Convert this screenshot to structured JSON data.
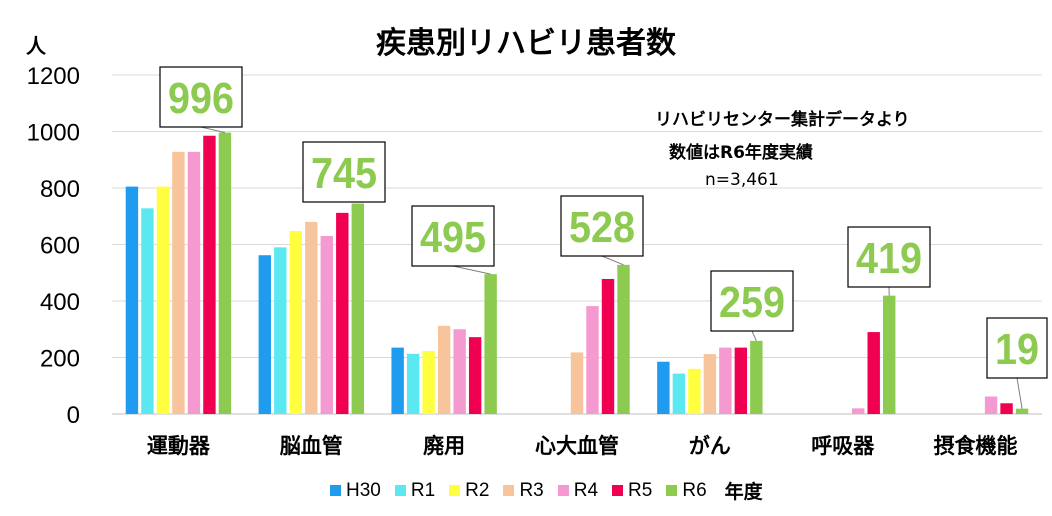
{
  "chart_data": {
    "type": "bar",
    "title": "疾患別リハビリ患者数",
    "ylabel": "人",
    "ylim": [
      0,
      1200
    ],
    "yticks": [
      0,
      200,
      400,
      600,
      800,
      1000,
      1200
    ],
    "grid": true,
    "legend_position": "bottom",
    "legend_suffix": "年度",
    "categories": [
      "運動器",
      "脳血管",
      "廃用",
      "心大血管",
      "がん",
      "呼吸器",
      "摂食機能"
    ],
    "series": [
      {
        "name": "H30",
        "color": "#1f9bf0",
        "values": [
          805,
          562,
          235,
          null,
          185,
          null,
          null
        ]
      },
      {
        "name": "R1",
        "color": "#5ce8f0",
        "values": [
          728,
          590,
          213,
          null,
          143,
          null,
          null
        ]
      },
      {
        "name": "R2",
        "color": "#ffff40",
        "values": [
          805,
          648,
          223,
          null,
          160,
          null,
          null
        ]
      },
      {
        "name": "R3",
        "color": "#f8c49c",
        "values": [
          928,
          680,
          312,
          218,
          212,
          null,
          null
        ]
      },
      {
        "name": "R4",
        "color": "#f59ad0",
        "values": [
          928,
          630,
          300,
          382,
          235,
          20,
          62
        ]
      },
      {
        "name": "R5",
        "color": "#f00050",
        "values": [
          985,
          712,
          272,
          478,
          235,
          290,
          38
        ]
      },
      {
        "name": "R6",
        "color": "#8cca50",
        "values": [
          996,
          745,
          495,
          528,
          259,
          419,
          19
        ]
      }
    ],
    "callouts": [
      "996",
      "745",
      "495",
      "528",
      "259",
      "419",
      "19"
    ],
    "callout_color": "#8cca50",
    "annotation_lines": [
      "リハビリセンター集計データより",
      "数値はR6年度実績",
      "n=3,461"
    ]
  }
}
